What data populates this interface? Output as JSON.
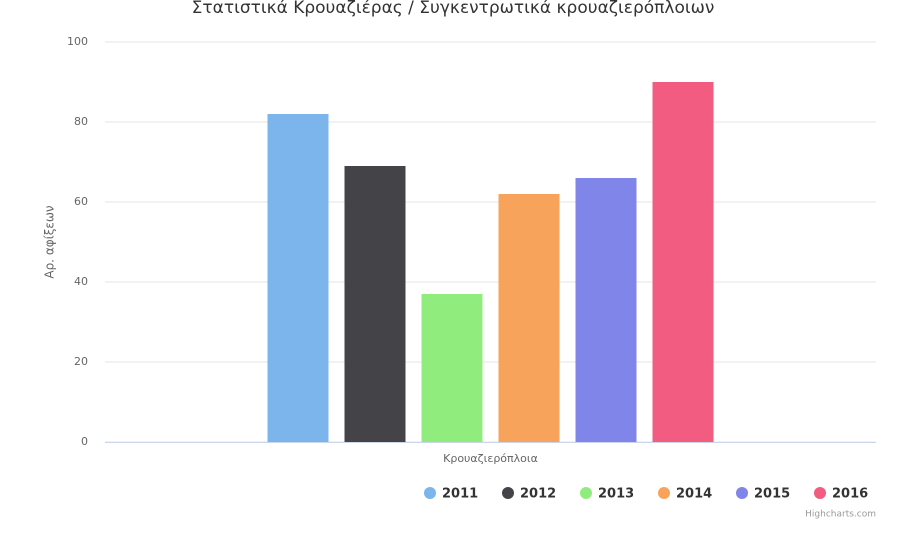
{
  "chart_data": {
    "type": "bar",
    "title": "Στατιστικά Κρουαζιέρας / Συγκεντρωτικά κρουαζιερόπλοιων",
    "y_axis_label": "Αρ. αφίξεων",
    "categories": [
      "Κρουαζιερόπλοια"
    ],
    "series": [
      {
        "name": "2011",
        "color": "#7cb5ec",
        "values": [
          82
        ]
      },
      {
        "name": "2012",
        "color": "#434348",
        "values": [
          69
        ]
      },
      {
        "name": "2013",
        "color": "#90ed7d",
        "values": [
          37
        ]
      },
      {
        "name": "2014",
        "color": "#f7a35c",
        "values": [
          62
        ]
      },
      {
        "name": "2015",
        "color": "#8085e9",
        "values": [
          66
        ]
      },
      {
        "name": "2016",
        "color": "#f15c80",
        "values": [
          90
        ]
      }
    ],
    "ylim": [
      0,
      100
    ],
    "yticks": [
      0,
      20,
      40,
      60,
      80,
      100
    ],
    "grid": true,
    "legend": "bottom-right",
    "credits": "Highcharts.com"
  }
}
